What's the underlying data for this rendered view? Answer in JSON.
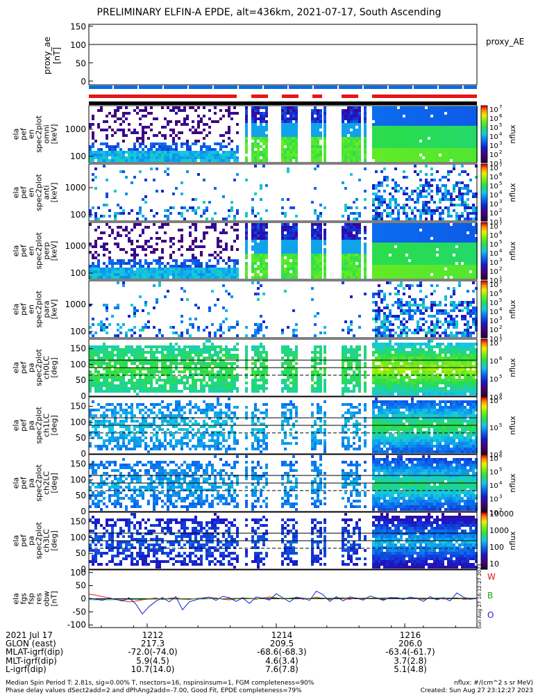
{
  "title": "PRELIMINARY ELFIN-A EPDE, alt=436km, 2021-07-17, South Ascending",
  "colors": {
    "sci_zone": "#0a6ee0",
    "data_red": "#e81414",
    "data_black": "#000000",
    "wave_W": "#e81414",
    "wave_B": "#11aa11",
    "wave_O": "#1a1ad6"
  },
  "chart_data": [
    {
      "type": "line",
      "panel": "proxy_ae",
      "ylabel": "proxy_ae [nT]",
      "legend": "proxy_AE",
      "ylim": [
        -10,
        155
      ],
      "yticks": [
        "150",
        "100",
        "50",
        "0"
      ],
      "x_minutes": [
        0,
        2.8,
        5.6
      ],
      "y": [
        100,
        100,
        100
      ]
    },
    {
      "type": "heatmap",
      "panel": "pef_en_spec2plot_omni",
      "ylabel": "ela pef en spec2plot omni [keV]",
      "yscale": "log",
      "yticks": [
        "1000",
        "100"
      ],
      "colorbar": {
        "label": "nflux",
        "ticks": [
          "10^7",
          "10^6",
          "10^5",
          "10^4",
          "10^3",
          "10^2",
          "10^1"
        ]
      }
    },
    {
      "type": "heatmap",
      "panel": "pef_en_spec2plot_anti",
      "ylabel": "ela pef en spec2plot anti [keV]",
      "yscale": "log",
      "yticks": [
        "1000",
        "100"
      ],
      "colorbar": {
        "label": "nflux",
        "ticks": [
          "10^7",
          "10^6",
          "10^5",
          "10^4",
          "10^3",
          "10^2",
          "10^1"
        ]
      }
    },
    {
      "type": "heatmap",
      "panel": "pef_en_spec2plot_perp",
      "ylabel": "ela pef en spec2plot perp [keV]",
      "yscale": "log",
      "yticks": [
        "1000",
        "100"
      ],
      "colorbar": {
        "label": "nflux",
        "ticks": [
          "10^7",
          "10^6",
          "10^5",
          "10^4",
          "10^3",
          "10^2",
          "10^1"
        ]
      }
    },
    {
      "type": "heatmap",
      "panel": "pef_en_spec2plot_para",
      "ylabel": "ela pef en spec2plot para [keV]",
      "yscale": "log",
      "yticks": [
        "1000",
        "100"
      ],
      "colorbar": {
        "label": "nflux",
        "ticks": [
          "10^7",
          "10^6",
          "10^5",
          "10^4",
          "10^3",
          "10^2",
          "10^1"
        ]
      }
    },
    {
      "type": "heatmap",
      "panel": "pef_pa_spec2plot_ch0LC",
      "ylabel": "ela pef pa spec2plot ch0LC [deg]",
      "ylim": [
        0,
        180
      ],
      "yticks": [
        "150",
        "100",
        "50",
        "0"
      ],
      "colorbar": {
        "label": "nflux",
        "ticks": [
          "10^7",
          "10^6",
          "10^5",
          "10^4"
        ]
      }
    },
    {
      "type": "heatmap",
      "panel": "pef_pa_spec2plot_ch1LC",
      "ylabel": "ela pef pa spec2plot ch1LC [deg]",
      "ylim": [
        0,
        180
      ],
      "yticks": [
        "150",
        "100",
        "50",
        "0"
      ],
      "colorbar": {
        "label": "nflux",
        "ticks": [
          "10^6",
          "10^5",
          "10^4"
        ]
      }
    },
    {
      "type": "heatmap",
      "panel": "pef_pa_spec2plot_ch2LC",
      "ylabel": "ela pef pa spec2plot ch2LC [deg]",
      "ylim": [
        0,
        180
      ],
      "yticks": [
        "150",
        "100",
        "50",
        "0"
      ],
      "colorbar": {
        "label": "nflux",
        "ticks": [
          "10^6",
          "10^5",
          "10^4",
          "10^3",
          "10^2"
        ]
      }
    },
    {
      "type": "heatmap",
      "panel": "pef_pa_spec2plot_ch3LC",
      "ylabel": "ela pef pa spec2plot ch3LC [deg]",
      "ylim": [
        0,
        180
      ],
      "yticks": [
        "150",
        "100",
        "50",
        "0"
      ],
      "colorbar": {
        "label": "nflux",
        "ticks": [
          "10000",
          "1000",
          "100",
          "10"
        ]
      }
    },
    {
      "type": "line",
      "panel": "fgs_res_obw",
      "ylabel": "ela fgs fsp res obw [nT]",
      "ylim": [
        -110,
        110
      ],
      "yticks": [
        "100",
        "50",
        "0",
        "-50",
        "-100"
      ],
      "series": [
        {
          "name": "W",
          "values": [
            18,
            14,
            8,
            3,
            -2,
            -7,
            -12,
            -9,
            -4,
            0,
            3,
            -3,
            2,
            4,
            -1,
            -3,
            1,
            2,
            5,
            3,
            -2,
            -4,
            -1,
            4,
            1,
            -2,
            3,
            7,
            4,
            -1,
            2,
            5,
            -2,
            1,
            6,
            2,
            -3,
            4,
            1,
            -2,
            3,
            -1,
            2,
            1,
            -3,
            2,
            5,
            -1,
            2,
            0,
            -2,
            1,
            3,
            -1,
            2,
            4,
            -2,
            -1,
            0
          ]
        },
        {
          "name": "B",
          "values": [
            -3,
            -4,
            -3,
            -4,
            -3,
            -4,
            -3,
            -2,
            -3,
            -2,
            -1,
            -2,
            -1,
            -1,
            -2,
            -1,
            0,
            -1,
            0,
            1,
            0,
            1,
            2,
            1,
            2,
            1,
            1,
            2,
            3,
            2,
            2,
            3,
            2,
            1,
            2,
            3,
            2,
            3,
            4,
            3,
            2,
            3,
            2,
            3,
            4,
            3,
            2,
            3,
            2,
            3,
            3,
            2,
            3,
            4,
            3,
            2,
            3,
            3,
            2
          ]
        },
        {
          "name": "O",
          "values": [
            2,
            -1,
            -6,
            3,
            -2,
            -9,
            4,
            -20,
            -58,
            -30,
            -10,
            5,
            -12,
            8,
            -42,
            -12,
            -4,
            3,
            6,
            -6,
            9,
            4,
            -10,
            3,
            -18,
            7,
            2,
            -5,
            19,
            4,
            -12,
            6,
            2,
            -6,
            29,
            16,
            -10,
            8,
            -8,
            7,
            2,
            -5,
            10,
            3,
            -6,
            5,
            4,
            -3,
            6,
            2,
            -10,
            8,
            -4,
            3,
            -8,
            22,
            6,
            -2,
            3
          ]
        }
      ]
    }
  ],
  "labels": {
    "proxy": {
      "l1": "proxy_ae",
      "l2": "[nT]",
      "legend": "proxy_AE"
    },
    "en_panels": [
      {
        "l1": "ela",
        "l2": "pef",
        "l3": "en",
        "l4": "spec2plot",
        "l5": "omni",
        "l6": "[keV]"
      },
      {
        "l1": "ela",
        "l2": "pef",
        "l3": "en",
        "l4": "spec2plot",
        "l5": "anti",
        "l6": "[keV]"
      },
      {
        "l1": "ela",
        "l2": "pef",
        "l3": "en",
        "l4": "spec2plot",
        "l5": "perp",
        "l6": "[keV]"
      },
      {
        "l1": "ela",
        "l2": "pef",
        "l3": "en",
        "l4": "spec2plot",
        "l5": "para",
        "l6": "[keV]"
      }
    ],
    "pa_panels": [
      {
        "l1": "ela",
        "l2": "pef",
        "l3": "pa",
        "l4": "spec2plot",
        "l5": "ch0LC",
        "l6": "[deg]"
      },
      {
        "l1": "ela",
        "l2": "pef",
        "l3": "pa",
        "l4": "spec2plot",
        "l5": "ch1LC",
        "l6": "[deg]"
      },
      {
        "l1": "ela",
        "l2": "pef",
        "l3": "pa",
        "l4": "spec2plot",
        "l5": "ch2LC",
        "l6": "[deg]"
      },
      {
        "l1": "ela",
        "l2": "pef",
        "l3": "pa",
        "l4": "spec2plot",
        "l5": "ch3LC",
        "l6": "[deg]"
      }
    ],
    "fgs": {
      "l1": "ela",
      "l2": "fgs",
      "l3": "fsp",
      "l4": "res",
      "l5": "obw",
      "l6": "[nT]",
      "W": "W",
      "B": "B",
      "O": "O"
    },
    "nflux": "nflux",
    "side_stamp": "Sun Aug 27 16:12:27 2023"
  },
  "ticks": {
    "proxy_y": [
      "150",
      "100",
      "50",
      "0"
    ],
    "en_y": [
      "1000",
      "100"
    ],
    "pa_y": [
      "150",
      "100",
      "50",
      "0"
    ],
    "fgs_y": [
      "100",
      "50",
      "0",
      "-50",
      "-100"
    ],
    "cb_en": [
      "10",
      "7",
      "10",
      "6",
      "10",
      "5",
      "10",
      "4",
      "10",
      "3",
      "10",
      "2",
      "10",
      "1"
    ],
    "cb_ch0": [
      "10",
      "7",
      "10",
      "6",
      "10",
      "5",
      "10",
      "4"
    ],
    "cb_ch1": [
      "10",
      "6",
      "10",
      "5",
      "10",
      "4"
    ],
    "cb_ch2": [
      "10",
      "6",
      "10",
      "5",
      "10",
      "4",
      "10",
      "3",
      "10",
      "2"
    ],
    "cb_ch3": [
      "10000",
      "1000",
      "100",
      "10"
    ]
  },
  "table": {
    "labels": [
      "2021 Jul 17",
      "GLON (east)",
      "MLAT-igrf(dip)",
      "MLT-igrf(dip)",
      "L-igrf(dip)"
    ],
    "cols": [
      {
        "vals": [
          "1212",
          "217.3",
          "-72.0(-74.0)",
          "5.9(4.5)",
          "10.7(14.0)"
        ]
      },
      {
        "vals": [
          "1214",
          "209.5",
          "-68.6(-68.3)",
          "4.6(3.4)",
          "7.6(7.8)"
        ]
      },
      {
        "vals": [
          "1216",
          "206.0",
          "-63.4(-61.7)",
          "3.7(2.8)",
          "5.1(4.8)"
        ]
      }
    ]
  },
  "footer": {
    "line1": "Median Spin Period T: 2.81s, sig=0.00% T, nsectors=16, nspinsinsum=1, FGM completeness=90%",
    "line2": "Phase delay values dSect2add=2 and dPhAng2add=-7.00, Good Fit, EPDE completeness=79%",
    "right1": "nflux: #/(cm^2 s sr MeV)",
    "right2": "Created: Sun Aug 27 23:12:27 2023"
  }
}
